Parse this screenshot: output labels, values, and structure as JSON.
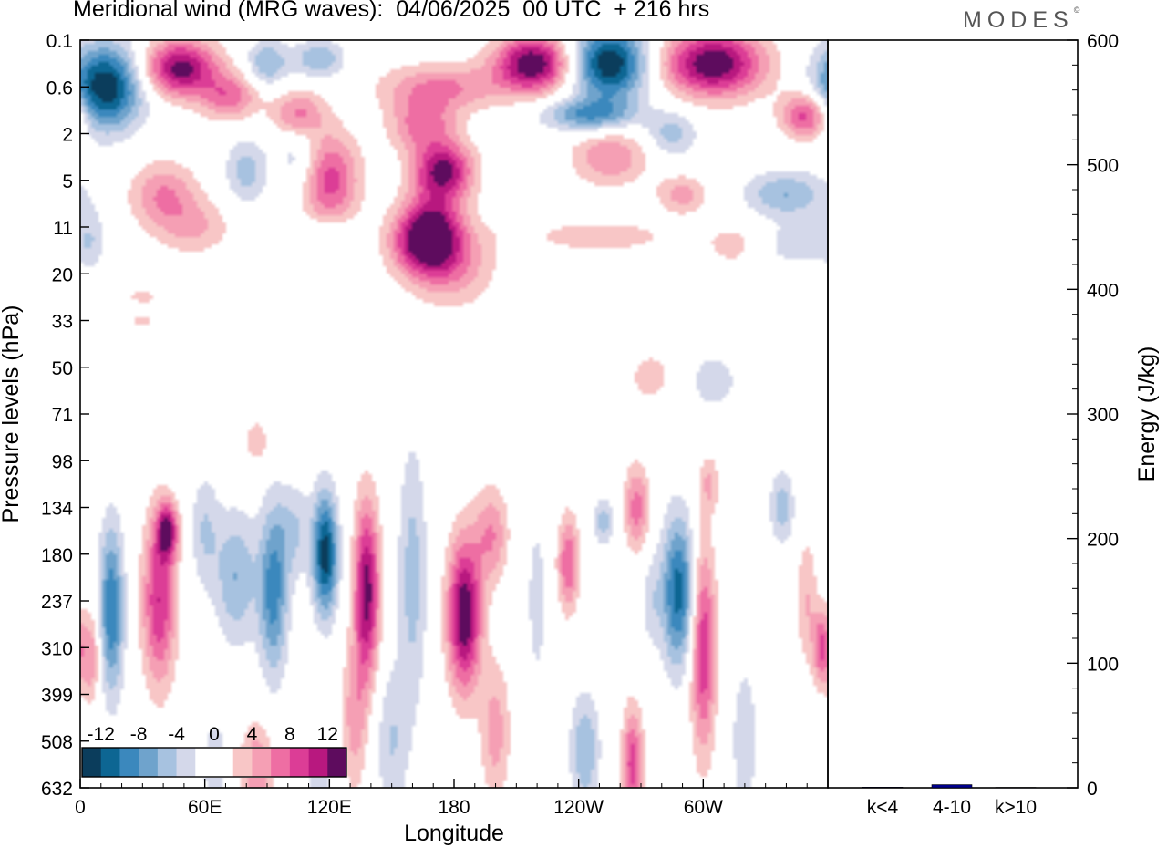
{
  "title": "Meridional wind (MRG waves):  04/06/2025  00 UTC  + 216 hrs",
  "logo": "MODES",
  "logo_mark": "©",
  "chart_data": [
    {
      "type": "heatmap",
      "xlabel": "Longitude",
      "ylabel": "Pressure levels (hPa)",
      "x_ticks": [
        "0",
        "60E",
        "120E",
        "180",
        "120W",
        "60W"
      ],
      "y_ticks": [
        "0.1",
        "0.6",
        "2",
        "5",
        "11",
        "20",
        "33",
        "50",
        "71",
        "98",
        "134",
        "180",
        "237",
        "310",
        "399",
        "508",
        "632"
      ],
      "colorbar": {
        "labels": [
          "-12",
          "-8",
          "-4",
          "0",
          "4",
          "8",
          "12"
        ],
        "levels": [
          -14,
          -12,
          -10,
          -8,
          -6,
          -4,
          -2,
          0,
          2,
          4,
          6,
          8,
          10,
          12,
          14
        ],
        "colors": [
          "#0b3d5c",
          "#0d6693",
          "#3b88bd",
          "#6fa3cc",
          "#a7c2e0",
          "#d4d8ea",
          "#ffffff",
          "#ffffff",
          "#f8c6c6",
          "#f59fb4",
          "#ee6ea3",
          "#dc3d96",
          "#b8187f",
          "#5e0c5e"
        ]
      },
      "features": [
        {
          "lon": 12,
          "level": 1,
          "value": -14,
          "sx": 18,
          "sy": 0.9
        },
        {
          "lon": 48,
          "level": 0.6,
          "value": 13,
          "sx": 18,
          "sy": 0.6
        },
        {
          "lon": 72,
          "level": 1.2,
          "value": 7,
          "sx": 14,
          "sy": 0.5
        },
        {
          "lon": 90,
          "level": 0.5,
          "value": -6,
          "sx": 10,
          "sy": 0.5
        },
        {
          "lon": 115,
          "level": 0.4,
          "value": -6,
          "sx": 12,
          "sy": 0.4
        },
        {
          "lon": 105,
          "level": 1.6,
          "value": 7,
          "sx": 12,
          "sy": 0.5
        },
        {
          "lon": 120,
          "level": 3,
          "value": 9,
          "sx": 14,
          "sy": 1.0
        },
        {
          "lon": 165,
          "level": 1.8,
          "value": 7,
          "sx": 16,
          "sy": 0.6
        },
        {
          "lon": 175,
          "level": 2.8,
          "value": 12,
          "sx": 14,
          "sy": 0.6
        },
        {
          "lon": 170,
          "level": 4.0,
          "value": 7,
          "sx": 14,
          "sy": 0.9
        },
        {
          "lon": 175,
          "level": 1.0,
          "value": 6,
          "sx": 30,
          "sy": 0.5
        },
        {
          "lon": 218,
          "level": 0.5,
          "value": 14,
          "sx": 18,
          "sy": 0.6
        },
        {
          "lon": 255,
          "level": 0.5,
          "value": -14,
          "sx": 18,
          "sy": 0.8
        },
        {
          "lon": 305,
          "level": 0.5,
          "value": 14,
          "sx": 24,
          "sy": 0.7
        },
        {
          "lon": 350,
          "level": 1.6,
          "value": 10,
          "sx": 12,
          "sy": 0.5
        },
        {
          "lon": 245,
          "level": 1.6,
          "value": -8,
          "sx": 22,
          "sy": 0.35
        },
        {
          "lon": 255,
          "level": 2.5,
          "value": 6,
          "sx": 18,
          "sy": 0.6
        },
        {
          "lon": 285,
          "level": 2.0,
          "value": -5,
          "sx": 12,
          "sy": 0.5
        },
        {
          "lon": 340,
          "level": 3.3,
          "value": -6,
          "sx": 20,
          "sy": 0.5
        },
        {
          "lon": 290,
          "level": 3.3,
          "value": 5,
          "sx": 12,
          "sy": 0.4
        },
        {
          "lon": 165,
          "level": 4.3,
          "value": 10,
          "sx": 16,
          "sy": 0.7
        },
        {
          "lon": 180,
          "level": 4.8,
          "value": 5,
          "sx": 20,
          "sy": 0.9
        },
        {
          "lon": 40,
          "level": 3.3,
          "value": 6,
          "sx": 16,
          "sy": 0.7
        },
        {
          "lon": 55,
          "level": 4.0,
          "value": 4,
          "sx": 18,
          "sy": 0.6
        },
        {
          "lon": 80,
          "level": 2.8,
          "value": -5,
          "sx": 10,
          "sy": 0.7
        },
        {
          "lon": 105,
          "level": 2.5,
          "value": -4,
          "sx": 10,
          "sy": 0.8
        },
        {
          "lon": 250,
          "level": 4.2,
          "value": 3,
          "sx": 40,
          "sy": 0.4
        },
        {
          "lon": 315,
          "level": 4.4,
          "value": 3,
          "sx": 14,
          "sy": 0.5
        },
        {
          "lon": 345,
          "level": 4.4,
          "value": -3,
          "sx": 22,
          "sy": 0.5
        },
        {
          "lon": 5,
          "level": 4.2,
          "value": -3,
          "sx": 7,
          "sy": 0.7
        },
        {
          "lon": 115,
          "level": 4.2,
          "value": -3,
          "sx": 20,
          "sy": 0.4
        },
        {
          "lon": 275,
          "level": 7.2,
          "value": 3,
          "sx": 12,
          "sy": 0.6
        },
        {
          "lon": 305,
          "level": 7.3,
          "value": -3,
          "sx": 14,
          "sy": 0.7
        },
        {
          "lon": 85,
          "level": 8.6,
          "value": 3,
          "sx": 8,
          "sy": 0.6
        },
        {
          "lon": 30,
          "level": 5.5,
          "value": 3,
          "sx": 8,
          "sy": 0.15
        },
        {
          "lon": 30,
          "level": 6.0,
          "value": 3,
          "sx": 6,
          "sy": 0.12
        },
        {
          "lon": 5,
          "level": 13.2,
          "value": 6,
          "sx": 5,
          "sy": 1.0
        },
        {
          "lon": 15,
          "level": 12.2,
          "value": -10,
          "sx": 6,
          "sy": 1.8
        },
        {
          "lon": 38,
          "level": 12.0,
          "value": 10,
          "sx": 8,
          "sy": 1.8
        },
        {
          "lon": 42,
          "level": 10.5,
          "value": 11,
          "sx": 5,
          "sy": 0.6
        },
        {
          "lon": 60,
          "level": 10.5,
          "value": -4,
          "sx": 7,
          "sy": 1.2
        },
        {
          "lon": 75,
          "level": 11.5,
          "value": -6,
          "sx": 10,
          "sy": 1.4
        },
        {
          "lon": 93,
          "level": 11.8,
          "value": -9,
          "sx": 7,
          "sy": 1.8
        },
        {
          "lon": 118,
          "level": 11.0,
          "value": -13,
          "sx": 6,
          "sy": 1.3
        },
        {
          "lon": 103,
          "level": 10.5,
          "value": -4,
          "sx": 8,
          "sy": 1.0
        },
        {
          "lon": 138,
          "level": 11.8,
          "value": 13,
          "sx": 6,
          "sy": 1.9
        },
        {
          "lon": 132,
          "level": 14.5,
          "value": 5,
          "sx": 6,
          "sy": 1.6
        },
        {
          "lon": 160,
          "level": 11.5,
          "value": -5,
          "sx": 7,
          "sy": 2.8
        },
        {
          "lon": 150,
          "level": 15.0,
          "value": -4,
          "sx": 8,
          "sy": 1.6
        },
        {
          "lon": 185,
          "level": 12.3,
          "value": 14,
          "sx": 8,
          "sy": 1.6
        },
        {
          "lon": 198,
          "level": 10.6,
          "value": 6,
          "sx": 8,
          "sy": 1.0
        },
        {
          "lon": 200,
          "level": 14.8,
          "value": 5,
          "sx": 7,
          "sy": 1.5
        },
        {
          "lon": 220,
          "level": 12.0,
          "value": -4,
          "sx": 4,
          "sy": 1.5
        },
        {
          "lon": 235,
          "level": 11.2,
          "value": 8,
          "sx": 5,
          "sy": 1.0
        },
        {
          "lon": 252,
          "level": 10.3,
          "value": -5,
          "sx": 5,
          "sy": 0.5
        },
        {
          "lon": 268,
          "level": 10.0,
          "value": 7,
          "sx": 6,
          "sy": 0.9
        },
        {
          "lon": 275,
          "level": 12.0,
          "value": -3,
          "sx": 5,
          "sy": 1.0
        },
        {
          "lon": 243,
          "level": 15.2,
          "value": -6,
          "sx": 7,
          "sy": 1.2
        },
        {
          "lon": 266,
          "level": 15.5,
          "value": 9,
          "sx": 5,
          "sy": 1.2
        },
        {
          "lon": 288,
          "level": 11.8,
          "value": -11,
          "sx": 8,
          "sy": 1.6
        },
        {
          "lon": 300,
          "level": 13.0,
          "value": 10,
          "sx": 6,
          "sy": 2.2
        },
        {
          "lon": 303,
          "level": 9.5,
          "value": 4,
          "sx": 5,
          "sy": 0.6
        },
        {
          "lon": 320,
          "level": 15.0,
          "value": -4,
          "sx": 6,
          "sy": 1.6
        },
        {
          "lon": 338,
          "level": 10.0,
          "value": -5,
          "sx": 6,
          "sy": 0.8
        },
        {
          "lon": 350,
          "level": 12.0,
          "value": 4,
          "sx": 5,
          "sy": 1.4
        },
        {
          "lon": 357,
          "level": 13.0,
          "value": 8,
          "sx": 4,
          "sy": 0.8
        },
        {
          "lon": 65,
          "level": 15.5,
          "value": -3,
          "sx": 8,
          "sy": 1.2
        },
        {
          "lon": 85,
          "level": 15.6,
          "value": 6,
          "sx": 8,
          "sy": 1.0
        },
        {
          "lon": 115,
          "level": 15.8,
          "value": -3,
          "sx": 8,
          "sy": 0.9
        }
      ]
    },
    {
      "type": "bar",
      "categories": [
        "k<4",
        "4-10",
        "k>10"
      ],
      "values": [
        0.5,
        2.5,
        0.3
      ],
      "colors": [
        "#00008b",
        "#00008b",
        "#00008b"
      ],
      "ylabel": "Energy (J/kg)",
      "ylim": [
        0,
        600
      ],
      "y_ticks": [
        "0",
        "100",
        "200",
        "300",
        "400",
        "500",
        "600"
      ]
    }
  ]
}
